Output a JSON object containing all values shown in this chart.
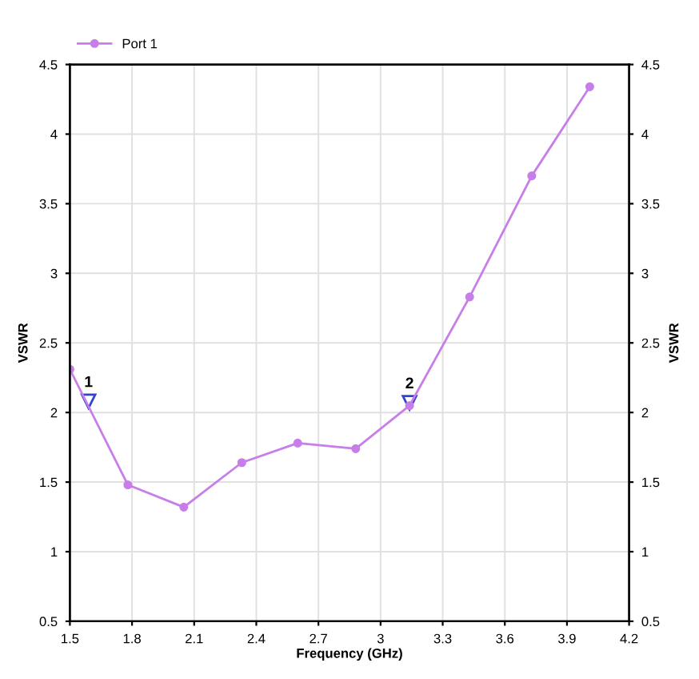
{
  "chart_data": {
    "type": "line",
    "xlabel": "Frequency (GHz)",
    "ylabel": "VSWR",
    "y2label": "VSWR",
    "x": [
      1.5,
      1.78,
      2.05,
      2.33,
      2.6,
      2.88,
      3.14,
      3.43,
      3.73,
      4.01
    ],
    "series": [
      {
        "name": "Port 1",
        "color": "#c77ee8",
        "values": [
          2.31,
          1.48,
          1.32,
          1.64,
          1.78,
          1.74,
          2.05,
          2.83,
          3.7,
          4.34
        ]
      }
    ],
    "xlim": [
      1.5,
      4.2
    ],
    "xticks": [
      1.5,
      1.8,
      2.1,
      2.4,
      2.7,
      3,
      3.3,
      3.6,
      3.9,
      4.2
    ],
    "ylim": [
      0.5,
      4.5
    ],
    "yticks": [
      0.5,
      1,
      1.5,
      2,
      2.5,
      3,
      3.5,
      4,
      4.5
    ],
    "y2lim": [
      0.5,
      4.5
    ],
    "y2ticks": [
      0.5,
      1,
      1.5,
      2,
      2.5,
      3,
      3.5,
      4,
      4.5
    ],
    "annotations": [
      {
        "text": "1",
        "x": 1.59,
        "y": 2.08
      },
      {
        "text": "2",
        "x": 3.14,
        "y": 2.07
      }
    ],
    "grid": true,
    "legend": "top left",
    "marker": "circle",
    "line_style": "solid"
  }
}
